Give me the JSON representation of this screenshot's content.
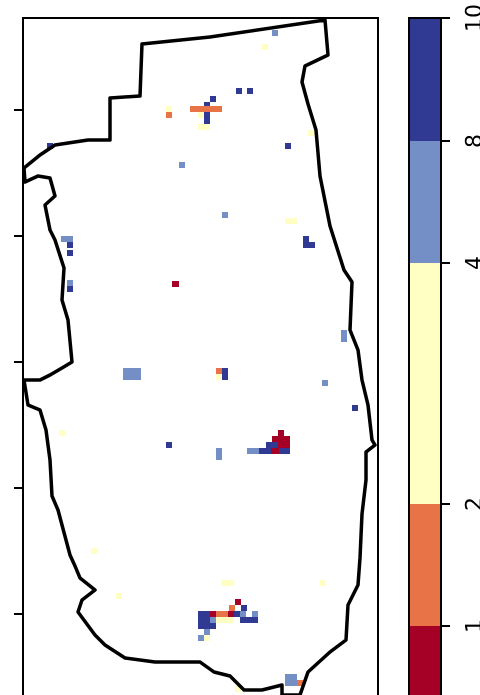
{
  "map": {
    "legend": {
      "colors": [
        "#a50026",
        "#e87346",
        "#ffffc4",
        "#748fc6",
        "#313a92"
      ],
      "tick_labels": [
        "1",
        "2",
        "4",
        "8",
        "10"
      ]
    },
    "cells": [
      {
        "cls": 4,
        "c": [
          [
            28,
            32
          ]
        ],
        "s": [
          [
            1,
            1
          ]
        ]
      },
      {
        "cls": 2,
        "c": [
          [
            14,
            10
          ],
          [
            12,
            14
          ],
          [
            13,
            14
          ],
          [
            17,
            16
          ],
          [
            13,
            34
          ]
        ],
        "s": [
          [
            1,
            1
          ]
        ]
      },
      {
        "cls": 0,
        "c": [
          [
            13,
            41
          ],
          [
            23,
            37
          ],
          [
            23,
            38
          ],
          [
            22,
            37
          ],
          [
            21,
            38
          ]
        ],
        "s": [
          [
            1,
            1
          ]
        ]
      },
      {
        "cls": 1,
        "c": [
          [
            12,
            12
          ],
          [
            13,
            12
          ],
          [
            14,
            12
          ],
          [
            15,
            12
          ],
          [
            18,
            39
          ],
          [
            19,
            39
          ],
          [
            20,
            38
          ],
          [
            21,
            38
          ],
          [
            22,
            38
          ],
          [
            23,
            39
          ]
        ],
        "s": [
          [
            1,
            1
          ]
        ]
      },
      {
        "cls": 3,
        "c": [
          [
            11,
            10
          ],
          [
            14,
            14
          ],
          [
            13,
            15
          ],
          [
            14,
            15
          ],
          [
            13,
            16
          ],
          [
            14,
            16
          ],
          [
            13,
            18
          ],
          [
            14,
            18
          ],
          [
            14,
            22
          ],
          [
            26,
            21
          ],
          [
            17,
            33
          ],
          [
            21,
            35
          ],
          [
            22,
            35
          ],
          [
            24,
            35
          ],
          [
            25,
            35
          ],
          [
            26,
            35
          ],
          [
            28,
            32
          ]
        ],
        "s": [
          [
            1,
            1
          ]
        ]
      },
      {
        "cls": 4,
        "c": [
          [
            15,
            11
          ],
          [
            16,
            11
          ],
          [
            13,
            12
          ],
          [
            14,
            13
          ],
          [
            23,
            13
          ],
          [
            19,
            35
          ],
          [
            20,
            35
          ],
          [
            21,
            34
          ],
          [
            22,
            34
          ],
          [
            23,
            34
          ],
          [
            24,
            34
          ],
          [
            25,
            34
          ],
          [
            26,
            34
          ],
          [
            13,
            34
          ]
        ],
        "s": [
          [
            1,
            1
          ]
        ]
      }
    ]
  }
}
